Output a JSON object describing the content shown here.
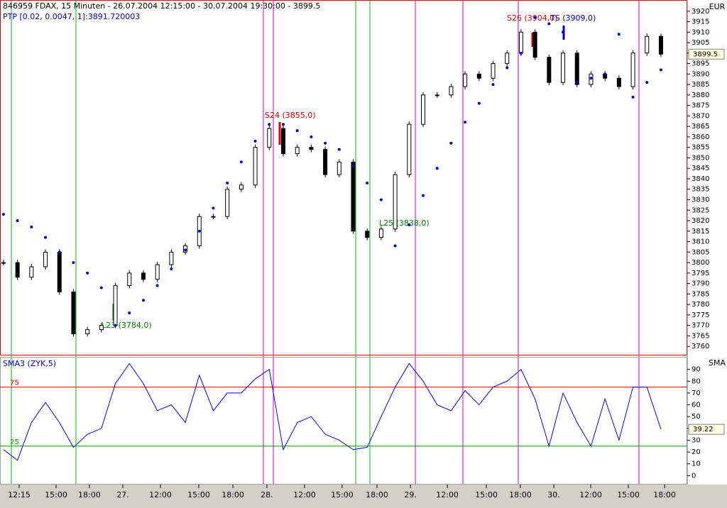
{
  "chart_data": [
    {
      "type": "candlestick",
      "title": "846959  FDAX, 15 Minuten - 26.07.2004 12:15:00 - 30.07.2004 19:30:00 - 3899.5",
      "ylabel": "EUR",
      "values": [
        3800,
        3793,
        3798,
        3805,
        3786,
        3766,
        3768,
        3770,
        3789,
        3795,
        3792,
        3799,
        3805,
        3808,
        3822,
        3822,
        3835,
        3837,
        3855,
        3864,
        3852,
        3855,
        3854,
        3842,
        3848,
        3815,
        3812,
        3816,
        3842,
        3866,
        3880,
        3880,
        3884,
        3890,
        3888,
        3895,
        3900,
        3910,
        3898,
        3886,
        3900,
        3885,
        3890,
        3888,
        3884,
        3900,
        3908,
        3899.5
      ],
      "series": [
        {
          "name": "PTP [0.02, 0.0047, 1]:3891.720003",
          "color": "#0000cc",
          "values": [
            3823,
            3820,
            3817,
            3812,
            3805,
            3800,
            3795,
            3788,
            3770,
            3776,
            3782,
            3789,
            3797,
            3806,
            3815,
            3826,
            3838,
            3848,
            3858,
            3866,
            3866,
            3863,
            3860,
            3857,
            3854,
            3846,
            3838,
            3830,
            3808,
            3818,
            3832,
            3845,
            3857,
            3867,
            3876,
            3885,
            3893,
            3900,
            3917,
            3914,
            3910,
            3886,
            3888,
            3890,
            3909,
            3879,
            3886,
            3892
          ]
        }
      ],
      "annotations": [
        {
          "text": "S24 (3855,0)",
          "color": "#e00000"
        },
        {
          "text": "L23 (3784,0)",
          "color": "#008000"
        },
        {
          "text": "L25 (3838,0)",
          "color": "#008000"
        },
        {
          "text": "S26 (3904,0)",
          "color": "#e00000"
        },
        {
          "text": "TS (3909,0)",
          "color": "#0000cc"
        }
      ],
      "xlim": [
        -0.25,
        48.88
      ],
      "ylim": [
        3756,
        3925
      ],
      "yticks": [
        3760,
        3765,
        3770,
        3775,
        3780,
        3785,
        3790,
        3795,
        3800,
        3805,
        3810,
        3815,
        3820,
        3825,
        3830,
        3835,
        3840,
        3845,
        3850,
        3855,
        3860,
        3865,
        3870,
        3875,
        3880,
        3885,
        3890,
        3895,
        3900,
        3905,
        3910,
        3915,
        3920
      ]
    },
    {
      "type": "line",
      "ylabel": "SMA",
      "series": [
        {
          "name": "SMA3 (ZYK,5)",
          "color": "#0000ff",
          "values": [
            22,
            13,
            45,
            62,
            45,
            24,
            35,
            40,
            78,
            95,
            78,
            55,
            60,
            45,
            85,
            55,
            70,
            70,
            82,
            90,
            22,
            45,
            50,
            35,
            30,
            22,
            24,
            50,
            75,
            95,
            80,
            60,
            55,
            72,
            60,
            75,
            80,
            90,
            65,
            25,
            70,
            45,
            25,
            65,
            30,
            75,
            75,
            39.22
          ]
        }
      ],
      "levels": [
        {
          "value": 75,
          "color": "#e00000"
        },
        {
          "value": 25,
          "color": "#00a000"
        }
      ],
      "xlim": [
        -0.25,
        48.88
      ],
      "ylim": [
        -7,
        100
      ],
      "yticks": [
        0,
        10,
        20,
        30,
        40,
        50,
        60,
        70,
        80,
        90
      ],
      "xticks": [
        {
          "value": 1.12,
          "label": "12:15"
        },
        {
          "value": 3.76,
          "label": "15:00"
        },
        {
          "value": 6.14,
          "label": "18:00"
        },
        {
          "value": 8.53,
          "label": "27."
        },
        {
          "value": 11.22,
          "label": "12:00"
        },
        {
          "value": 13.96,
          "label": "15:00"
        },
        {
          "value": 16.4,
          "label": "18:00"
        },
        {
          "value": 18.83,
          "label": "28."
        },
        {
          "value": 21.52,
          "label": "12:00"
        },
        {
          "value": 24.21,
          "label": "15:00"
        },
        {
          "value": 26.7,
          "label": "18:00"
        },
        {
          "value": 29.09,
          "label": "29."
        },
        {
          "value": 31.73,
          "label": "12:00"
        },
        {
          "value": 34.52,
          "label": "15:00"
        },
        {
          "value": 36.95,
          "label": "18:00"
        },
        {
          "value": 39.34,
          "label": "30."
        },
        {
          "value": 41.98,
          "label": "12:00"
        },
        {
          "value": 44.67,
          "label": "15:00"
        },
        {
          "value": 47.26,
          "label": "18:00"
        }
      ]
    }
  ]
}
